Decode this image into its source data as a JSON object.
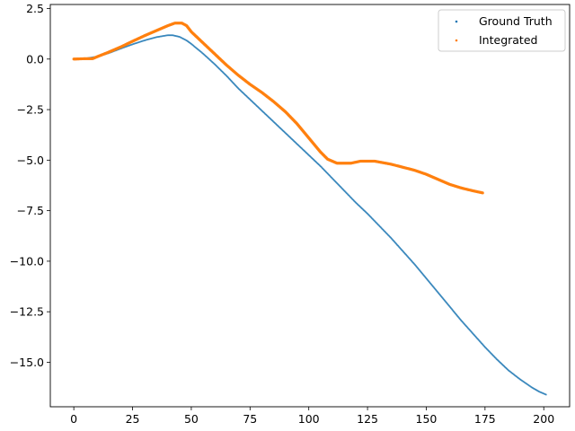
{
  "chart_data": {
    "type": "scatter",
    "title": "",
    "xlabel": "",
    "ylabel": "",
    "xlim": [
      -10,
      211
    ],
    "ylim": [
      -17.2,
      2.7
    ],
    "x_ticks": [
      0,
      25,
      50,
      75,
      100,
      125,
      150,
      175,
      200
    ],
    "x_tick_labels": [
      "0",
      "25",
      "50",
      "75",
      "100",
      "125",
      "150",
      "175",
      "200"
    ],
    "y_ticks": [
      2.5,
      0,
      -2.5,
      -5,
      -7.5,
      -10,
      -12.5,
      -15
    ],
    "y_tick_labels": [
      "2.5",
      "0.0",
      "−2.5",
      "−5.0",
      "−7.5",
      "−10.0",
      "−12.5",
      "−15.0"
    ],
    "grid": false,
    "legend_position": "top-right",
    "series": [
      {
        "name": "Ground Truth",
        "color": "#1f77b4",
        "points": [
          [
            0,
            0
          ],
          [
            5,
            0.03
          ],
          [
            10,
            0.12
          ],
          [
            15,
            0.3
          ],
          [
            20,
            0.52
          ],
          [
            25,
            0.73
          ],
          [
            30,
            0.92
          ],
          [
            35,
            1.08
          ],
          [
            40,
            1.18
          ],
          [
            42,
            1.18
          ],
          [
            45,
            1.1
          ],
          [
            48,
            0.92
          ],
          [
            50,
            0.75
          ],
          [
            55,
            0.27
          ],
          [
            60,
            -0.26
          ],
          [
            65,
            -0.83
          ],
          [
            70,
            -1.45
          ],
          [
            75,
            -2.0
          ],
          [
            80,
            -2.55
          ],
          [
            85,
            -3.1
          ],
          [
            90,
            -3.65
          ],
          [
            95,
            -4.2
          ],
          [
            100,
            -4.75
          ],
          [
            105,
            -5.3
          ],
          [
            110,
            -5.9
          ],
          [
            115,
            -6.5
          ],
          [
            120,
            -7.1
          ],
          [
            125,
            -7.65
          ],
          [
            130,
            -8.25
          ],
          [
            135,
            -8.85
          ],
          [
            140,
            -9.5
          ],
          [
            145,
            -10.15
          ],
          [
            150,
            -10.85
          ],
          [
            155,
            -11.55
          ],
          [
            160,
            -12.25
          ],
          [
            165,
            -12.95
          ],
          [
            170,
            -13.6
          ],
          [
            175,
            -14.25
          ],
          [
            180,
            -14.85
          ],
          [
            185,
            -15.4
          ],
          [
            190,
            -15.85
          ],
          [
            195,
            -16.25
          ],
          [
            198,
            -16.45
          ],
          [
            201,
            -16.6
          ]
        ]
      },
      {
        "name": "Integrated",
        "color": "#ff7f0e",
        "points": [
          [
            0,
            0
          ],
          [
            5,
            0.02
          ],
          [
            8,
            0.02
          ],
          [
            10,
            0.12
          ],
          [
            15,
            0.35
          ],
          [
            20,
            0.6
          ],
          [
            25,
            0.88
          ],
          [
            30,
            1.15
          ],
          [
            35,
            1.4
          ],
          [
            40,
            1.65
          ],
          [
            43,
            1.78
          ],
          [
            46,
            1.78
          ],
          [
            48,
            1.65
          ],
          [
            50,
            1.35
          ],
          [
            55,
            0.8
          ],
          [
            60,
            0.25
          ],
          [
            65,
            -0.3
          ],
          [
            70,
            -0.8
          ],
          [
            75,
            -1.25
          ],
          [
            80,
            -1.65
          ],
          [
            85,
            -2.1
          ],
          [
            90,
            -2.6
          ],
          [
            95,
            -3.2
          ],
          [
            100,
            -3.9
          ],
          [
            105,
            -4.6
          ],
          [
            108,
            -4.95
          ],
          [
            112,
            -5.15
          ],
          [
            118,
            -5.15
          ],
          [
            122,
            -5.05
          ],
          [
            128,
            -5.05
          ],
          [
            135,
            -5.2
          ],
          [
            140,
            -5.35
          ],
          [
            145,
            -5.5
          ],
          [
            150,
            -5.7
          ],
          [
            155,
            -5.95
          ],
          [
            160,
            -6.2
          ],
          [
            165,
            -6.38
          ],
          [
            170,
            -6.52
          ],
          [
            174,
            -6.62
          ]
        ]
      }
    ]
  }
}
